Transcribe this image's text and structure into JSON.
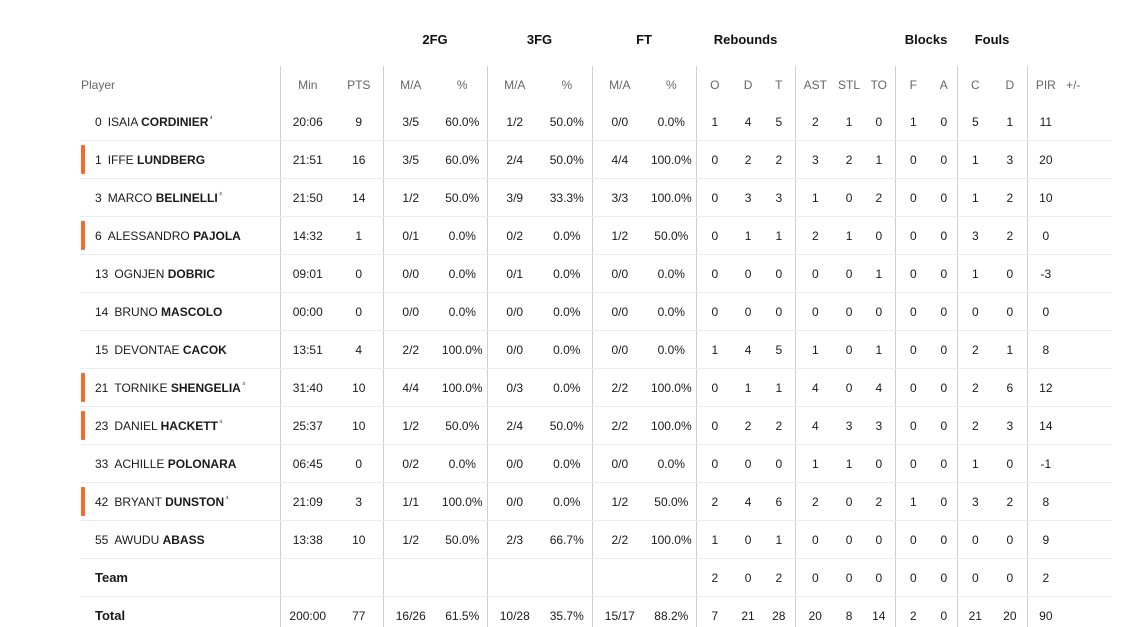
{
  "groups": {
    "fg2": "2FG",
    "fg3": "3FG",
    "ft": "FT",
    "rebounds": "Rebounds",
    "blocks": "Blocks",
    "fouls": "Fouls"
  },
  "headers": {
    "player": "Player",
    "min": "Min",
    "pts": "PTS",
    "fg2_ma": "M/A",
    "fg2_pct": "%",
    "fg3_ma": "M/A",
    "fg3_pct": "%",
    "ft_ma": "M/A",
    "ft_pct": "%",
    "reb_o": "O",
    "reb_d": "D",
    "reb_t": "T",
    "ast": "AST",
    "stl": "STL",
    "to": "TO",
    "blk_f": "F",
    "blk_a": "A",
    "foul_c": "C",
    "foul_d": "D",
    "pir": "PIR",
    "plusminus": "+/-"
  },
  "accent_color": "#f26b2a",
  "rows": [
    {
      "num": "0",
      "first": "ISAIA",
      "last": "CORDINIER",
      "star": "⁴",
      "marked": false,
      "min": "20:06",
      "pts": "9",
      "fg2_ma": "3/5",
      "fg2_pct": "60.0%",
      "fg3_ma": "1/2",
      "fg3_pct": "50.0%",
      "ft_ma": "0/0",
      "ft_pct": "0.0%",
      "reb_o": "1",
      "reb_d": "4",
      "reb_t": "5",
      "ast": "2",
      "stl": "1",
      "to": "0",
      "blk_f": "1",
      "blk_a": "0",
      "foul_c": "5",
      "foul_d": "1",
      "pir": "11",
      "plusminus": ""
    },
    {
      "num": "1",
      "first": "IFFE",
      "last": "LUNDBERG",
      "star": "",
      "marked": true,
      "min": "21:51",
      "pts": "16",
      "fg2_ma": "3/5",
      "fg2_pct": "60.0%",
      "fg3_ma": "2/4",
      "fg3_pct": "50.0%",
      "ft_ma": "4/4",
      "ft_pct": "100.0%",
      "reb_o": "0",
      "reb_d": "2",
      "reb_t": "2",
      "ast": "3",
      "stl": "2",
      "to": "1",
      "blk_f": "0",
      "blk_a": "0",
      "foul_c": "1",
      "foul_d": "3",
      "pir": "20",
      "plusminus": ""
    },
    {
      "num": "3",
      "first": "MARCO",
      "last": "BELINELLI",
      "star": "⁴",
      "marked": false,
      "min": "21:50",
      "pts": "14",
      "fg2_ma": "1/2",
      "fg2_pct": "50.0%",
      "fg3_ma": "3/9",
      "fg3_pct": "33.3%",
      "ft_ma": "3/3",
      "ft_pct": "100.0%",
      "reb_o": "0",
      "reb_d": "3",
      "reb_t": "3",
      "ast": "1",
      "stl": "0",
      "to": "2",
      "blk_f": "0",
      "blk_a": "0",
      "foul_c": "1",
      "foul_d": "2",
      "pir": "10",
      "plusminus": ""
    },
    {
      "num": "6",
      "first": "ALESSANDRO",
      "last": "PAJOLA",
      "star": "",
      "marked": true,
      "min": "14:32",
      "pts": "1",
      "fg2_ma": "0/1",
      "fg2_pct": "0.0%",
      "fg3_ma": "0/2",
      "fg3_pct": "0.0%",
      "ft_ma": "1/2",
      "ft_pct": "50.0%",
      "reb_o": "0",
      "reb_d": "1",
      "reb_t": "1",
      "ast": "2",
      "stl": "1",
      "to": "0",
      "blk_f": "0",
      "blk_a": "0",
      "foul_c": "3",
      "foul_d": "2",
      "pir": "0",
      "plusminus": ""
    },
    {
      "num": "13",
      "first": "OGNJEN",
      "last": "DOBRIC",
      "star": "",
      "marked": false,
      "min": "09:01",
      "pts": "0",
      "fg2_ma": "0/0",
      "fg2_pct": "0.0%",
      "fg3_ma": "0/1",
      "fg3_pct": "0.0%",
      "ft_ma": "0/0",
      "ft_pct": "0.0%",
      "reb_o": "0",
      "reb_d": "0",
      "reb_t": "0",
      "ast": "0",
      "stl": "0",
      "to": "1",
      "blk_f": "0",
      "blk_a": "0",
      "foul_c": "1",
      "foul_d": "0",
      "pir": "-3",
      "plusminus": ""
    },
    {
      "num": "14",
      "first": "BRUNO",
      "last": "MASCOLO",
      "star": "",
      "marked": false,
      "min": "00:00",
      "pts": "0",
      "fg2_ma": "0/0",
      "fg2_pct": "0.0%",
      "fg3_ma": "0/0",
      "fg3_pct": "0.0%",
      "ft_ma": "0/0",
      "ft_pct": "0.0%",
      "reb_o": "0",
      "reb_d": "0",
      "reb_t": "0",
      "ast": "0",
      "stl": "0",
      "to": "0",
      "blk_f": "0",
      "blk_a": "0",
      "foul_c": "0",
      "foul_d": "0",
      "pir": "0",
      "plusminus": ""
    },
    {
      "num": "15",
      "first": "DEVONTAE",
      "last": "CACOK",
      "star": "",
      "marked": false,
      "min": "13:51",
      "pts": "4",
      "fg2_ma": "2/2",
      "fg2_pct": "100.0%",
      "fg3_ma": "0/0",
      "fg3_pct": "0.0%",
      "ft_ma": "0/0",
      "ft_pct": "0.0%",
      "reb_o": "1",
      "reb_d": "4",
      "reb_t": "5",
      "ast": "1",
      "stl": "0",
      "to": "1",
      "blk_f": "0",
      "blk_a": "0",
      "foul_c": "2",
      "foul_d": "1",
      "pir": "8",
      "plusminus": ""
    },
    {
      "num": "21",
      "first": "TORNIKE",
      "last": "SHENGELIA",
      "star": "⁴",
      "marked": true,
      "min": "31:40",
      "pts": "10",
      "fg2_ma": "4/4",
      "fg2_pct": "100.0%",
      "fg3_ma": "0/3",
      "fg3_pct": "0.0%",
      "ft_ma": "2/2",
      "ft_pct": "100.0%",
      "reb_o": "0",
      "reb_d": "1",
      "reb_t": "1",
      "ast": "4",
      "stl": "0",
      "to": "4",
      "blk_f": "0",
      "blk_a": "0",
      "foul_c": "2",
      "foul_d": "6",
      "pir": "12",
      "plusminus": ""
    },
    {
      "num": "23",
      "first": "DANIEL",
      "last": "HACKETT",
      "star": "⁴",
      "marked": true,
      "min": "25:37",
      "pts": "10",
      "fg2_ma": "1/2",
      "fg2_pct": "50.0%",
      "fg3_ma": "2/4",
      "fg3_pct": "50.0%",
      "ft_ma": "2/2",
      "ft_pct": "100.0%",
      "reb_o": "0",
      "reb_d": "2",
      "reb_t": "2",
      "ast": "4",
      "stl": "3",
      "to": "3",
      "blk_f": "0",
      "blk_a": "0",
      "foul_c": "2",
      "foul_d": "3",
      "pir": "14",
      "plusminus": ""
    },
    {
      "num": "33",
      "first": "ACHILLE",
      "last": "POLONARA",
      "star": "",
      "marked": false,
      "min": "06:45",
      "pts": "0",
      "fg2_ma": "0/2",
      "fg2_pct": "0.0%",
      "fg3_ma": "0/0",
      "fg3_pct": "0.0%",
      "ft_ma": "0/0",
      "ft_pct": "0.0%",
      "reb_o": "0",
      "reb_d": "0",
      "reb_t": "0",
      "ast": "1",
      "stl": "1",
      "to": "0",
      "blk_f": "0",
      "blk_a": "0",
      "foul_c": "1",
      "foul_d": "0",
      "pir": "-1",
      "plusminus": ""
    },
    {
      "num": "42",
      "first": "BRYANT",
      "last": "DUNSTON",
      "star": "⁴",
      "marked": true,
      "min": "21:09",
      "pts": "3",
      "fg2_ma": "1/1",
      "fg2_pct": "100.0%",
      "fg3_ma": "0/0",
      "fg3_pct": "0.0%",
      "ft_ma": "1/2",
      "ft_pct": "50.0%",
      "reb_o": "2",
      "reb_d": "4",
      "reb_t": "6",
      "ast": "2",
      "stl": "0",
      "to": "2",
      "blk_f": "1",
      "blk_a": "0",
      "foul_c": "3",
      "foul_d": "2",
      "pir": "8",
      "plusminus": ""
    },
    {
      "num": "55",
      "first": "AWUDU",
      "last": "ABASS",
      "star": "",
      "marked": false,
      "min": "13:38",
      "pts": "10",
      "fg2_ma": "1/2",
      "fg2_pct": "50.0%",
      "fg3_ma": "2/3",
      "fg3_pct": "66.7%",
      "ft_ma": "2/2",
      "ft_pct": "100.0%",
      "reb_o": "1",
      "reb_d": "0",
      "reb_t": "1",
      "ast": "0",
      "stl": "0",
      "to": "0",
      "blk_f": "0",
      "blk_a": "0",
      "foul_c": "0",
      "foul_d": "0",
      "pir": "9",
      "plusminus": ""
    }
  ],
  "team": {
    "label": "Team",
    "min": "",
    "pts": "",
    "fg2_ma": "",
    "fg2_pct": "",
    "fg3_ma": "",
    "fg3_pct": "",
    "ft_ma": "",
    "ft_pct": "",
    "reb_o": "2",
    "reb_d": "0",
    "reb_t": "2",
    "ast": "0",
    "stl": "0",
    "to": "0",
    "blk_f": "0",
    "blk_a": "0",
    "foul_c": "0",
    "foul_d": "0",
    "pir": "2",
    "plusminus": ""
  },
  "total": {
    "label": "Total",
    "min": "200:00",
    "pts": "77",
    "fg2_ma": "16/26",
    "fg2_pct": "61.5%",
    "fg3_ma": "10/28",
    "fg3_pct": "35.7%",
    "ft_ma": "15/17",
    "ft_pct": "88.2%",
    "reb_o": "7",
    "reb_d": "21",
    "reb_t": "28",
    "ast": "20",
    "stl": "8",
    "to": "14",
    "blk_f": "2",
    "blk_a": "0",
    "foul_c": "21",
    "foul_d": "20",
    "pir": "90",
    "plusminus": ""
  }
}
